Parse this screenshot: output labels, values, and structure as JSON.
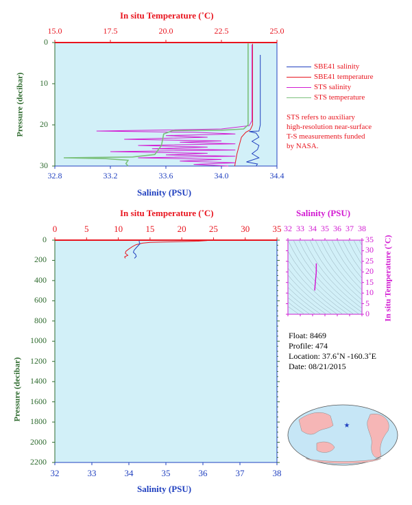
{
  "top": {
    "temp_axis_title": "In situ Temperature (˚C)",
    "temp_ticks": [
      "15.0",
      "17.5",
      "20.0",
      "22.5",
      "25.0"
    ],
    "sal_ticks": [
      "32.8",
      "33.2",
      "33.6",
      "34.0",
      "34.4"
    ],
    "sal_axis_title": "Salinity (PSU)",
    "pres_ticks": [
      "0",
      "10",
      "20",
      "30"
    ],
    "pres_axis_title": "Pressure (decibar)",
    "legend": [
      {
        "label": "SBE41 salinity",
        "color": "#1f3fbf"
      },
      {
        "label": "SBE41 temperature",
        "color": "#e8141e"
      },
      {
        "label": "STS salinity",
        "color": "#d21ad2"
      },
      {
        "label": "STS temperature",
        "color": "#7ac07a"
      }
    ],
    "note": [
      "STS refers to auxiliary",
      "high-resolution near-surface",
      "T-S measurements funded",
      "by NASA."
    ]
  },
  "bottom": {
    "temp_axis_title": "In situ Temperature (˚C)",
    "temp_ticks": [
      "0",
      "5",
      "10",
      "15",
      "20",
      "25",
      "30",
      "35"
    ],
    "sal_ticks": [
      "32",
      "33",
      "34",
      "35",
      "36",
      "37",
      "38"
    ],
    "sal_axis_title": "Salinity (PSU)",
    "pres_ticks": [
      "0",
      "200",
      "400",
      "600",
      "800",
      "1000",
      "1200",
      "1400",
      "1600",
      "1800",
      "2000",
      "2200"
    ],
    "pres_axis_title": "Pressure (decibar)"
  },
  "ts": {
    "sal_axis_title": "Salinity (PSU)",
    "sal_ticks": [
      "32",
      "33",
      "34",
      "35",
      "36",
      "37",
      "38"
    ],
    "temp_ticks": [
      "0",
      "5",
      "10",
      "15",
      "20",
      "25",
      "30",
      "35"
    ],
    "temp_axis_title": "In situ Temperature (˚C)"
  },
  "info": {
    "float": "Float:  8469",
    "profile": "Profile:  474",
    "location": "Location:  37.6˚N  -160.3˚E",
    "date": "Date:  08/21/2015"
  },
  "colors": {
    "plot_bg": "#d2f0f8",
    "temp": "#e8141e",
    "salinity": "#1f3fbf",
    "sts_salinity": "#d21ad2",
    "sts_temperature": "#7ac07a",
    "map_land": "#f6b6b6",
    "map_ocean": "#c6e6f6",
    "float_marker": "#1f3fbf"
  },
  "chart_data": [
    {
      "type": "line",
      "title": "",
      "x_top_label": "In situ Temperature (˚C)",
      "x_top_range": [
        15.0,
        25.0
      ],
      "x_bottom_label": "Salinity (PSU)",
      "x_bottom_range": [
        32.8,
        34.4
      ],
      "ylabel": "Pressure (decibar)",
      "ylim": [
        30,
        0
      ],
      "series": [
        {
          "name": "SBE41 salinity",
          "axis": "salinity",
          "points": [
            [
              34.28,
              3
            ],
            [
              34.28,
              8
            ],
            [
              34.28,
              12
            ],
            [
              34.28,
              16
            ],
            [
              34.28,
              20
            ],
            [
              34.27,
              21.5
            ],
            [
              34.2,
              21.6
            ],
            [
              34.25,
              22
            ],
            [
              34.27,
              23
            ],
            [
              34.22,
              24
            ],
            [
              34.27,
              25
            ],
            [
              34.26,
              26
            ],
            [
              34.22,
              27
            ],
            [
              34.27,
              28
            ],
            [
              34.18,
              29
            ],
            [
              34.26,
              29.5
            ],
            [
              34.25,
              30
            ]
          ]
        },
        {
          "name": "SBE41 temperature",
          "axis": "temperature",
          "points": [
            [
              23.9,
              0.3
            ],
            [
              23.9,
              5
            ],
            [
              23.9,
              10
            ],
            [
              23.9,
              15
            ],
            [
              23.9,
              20
            ],
            [
              23.8,
              21.2
            ],
            [
              23.6,
              21.8
            ],
            [
              23.4,
              23
            ],
            [
              23.3,
              25
            ],
            [
              23.2,
              27
            ],
            [
              23.1,
              30
            ]
          ]
        },
        {
          "name": "STS salinity",
          "axis": "salinity",
          "points": [
            [
              34.22,
              0.5
            ],
            [
              34.22,
              5
            ],
            [
              34.22,
              10
            ],
            [
              34.22,
              15
            ],
            [
              34.22,
              19
            ],
            [
              34.2,
              20.2
            ],
            [
              34.0,
              21
            ],
            [
              33.5,
              21.3
            ],
            [
              33.1,
              21.5
            ],
            [
              33.8,
              21.8
            ],
            [
              34.1,
              22.2
            ],
            [
              33.6,
              22.6
            ],
            [
              33.9,
              23.0
            ],
            [
              33.3,
              23.5
            ],
            [
              34.0,
              23.9
            ],
            [
              33.7,
              24.2
            ],
            [
              34.1,
              24.6
            ],
            [
              33.4,
              25.0
            ],
            [
              33.9,
              25.4
            ],
            [
              33.5,
              25.8
            ],
            [
              34.1,
              26.1
            ],
            [
              33.2,
              26.5
            ],
            [
              33.9,
              26.9
            ],
            [
              33.6,
              27.3
            ],
            [
              34.1,
              27.6
            ],
            [
              33.4,
              28.0
            ],
            [
              34.0,
              28.4
            ],
            [
              33.7,
              28.8
            ],
            [
              34.1,
              29.2
            ],
            [
              33.8,
              29.6
            ],
            [
              34.05,
              30
            ]
          ]
        },
        {
          "name": "STS temperature",
          "axis": "temperature",
          "points": [
            [
              23.7,
              0.2
            ],
            [
              23.7,
              5
            ],
            [
              23.7,
              10
            ],
            [
              23.7,
              15
            ],
            [
              23.7,
              20
            ],
            [
              23.5,
              21
            ],
            [
              22.5,
              21.3
            ],
            [
              20.3,
              21.4
            ],
            [
              19.9,
              22.2
            ],
            [
              19.8,
              25
            ],
            [
              19.5,
              27.2
            ],
            [
              18.5,
              27.8
            ],
            [
              16.8,
              27.9
            ],
            [
              15.4,
              28.0
            ],
            [
              17.3,
              28.2
            ],
            [
              18.3,
              28.6
            ],
            [
              18.2,
              29.4
            ],
            [
              18.3,
              30
            ]
          ]
        }
      ]
    },
    {
      "type": "line",
      "title": "",
      "x_top_label": "In situ Temperature (˚C)",
      "x_top_range": [
        0,
        35
      ],
      "x_bottom_label": "Salinity (PSU)",
      "x_bottom_range": [
        32,
        38
      ],
      "ylabel": "Pressure (decibar)",
      "ylim": [
        2200,
        0
      ],
      "series": [
        {
          "name": "temperature",
          "axis": "temperature",
          "points": [
            [
              24.0,
              4
            ],
            [
              22.5,
              10
            ],
            [
              20.0,
              14
            ],
            [
              17.0,
              18
            ],
            [
              15.0,
              22
            ],
            [
              13.8,
              30
            ],
            [
              12.8,
              45
            ],
            [
              12.2,
              65
            ],
            [
              11.6,
              90
            ],
            [
              11.2,
              110
            ],
            [
              11.1,
              130
            ],
            [
              11.5,
              150
            ],
            [
              11.0,
              165
            ],
            [
              11.1,
              180
            ]
          ]
        },
        {
          "name": "salinity",
          "axis": "salinity",
          "points": [
            [
              34.28,
              5
            ],
            [
              34.28,
              20
            ],
            [
              34.3,
              35
            ],
            [
              34.25,
              55
            ],
            [
              34.2,
              75
            ],
            [
              34.14,
              100
            ],
            [
              34.12,
              120
            ],
            [
              34.18,
              140
            ],
            [
              34.2,
              160
            ],
            [
              34.15,
              180
            ]
          ]
        }
      ]
    },
    {
      "type": "scatter",
      "title": "",
      "xlabel": "Salinity (PSU)",
      "ylabel": "In situ Temperature (˚C)",
      "xlim": [
        32,
        38
      ],
      "ylim": [
        0,
        35
      ],
      "points": [
        [
          34.3,
          24.0
        ],
        [
          34.3,
          21.5
        ],
        [
          34.29,
          19.0
        ],
        [
          34.25,
          17.0
        ],
        [
          34.22,
          15.0
        ],
        [
          34.2,
          13.5
        ],
        [
          34.18,
          12.0
        ],
        [
          34.17,
          11.2
        ]
      ]
    }
  ]
}
